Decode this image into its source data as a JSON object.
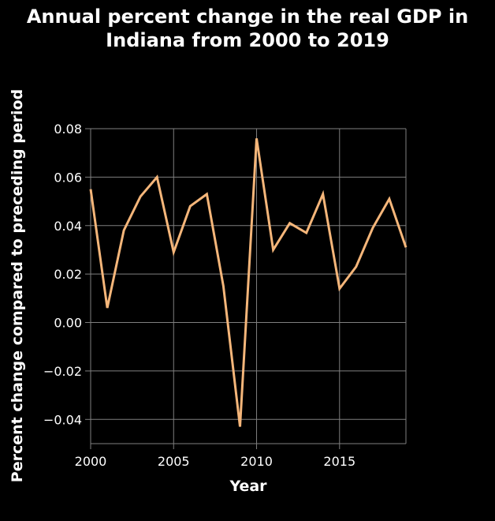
{
  "chart_data": {
    "type": "line",
    "title_line1": "Annual percent change in the real GDP in",
    "title_line2": "Indiana from 2000 to 2019",
    "xlabel": "Year",
    "ylabel": "Percent change compared to preceding period",
    "xlim": [
      2000,
      2019
    ],
    "ylim": [
      -0.05,
      0.08
    ],
    "x_ticks": [
      2000,
      2005,
      2010,
      2015
    ],
    "y_ticks": [
      -0.04,
      -0.02,
      0.0,
      0.02,
      0.04,
      0.06,
      0.08
    ],
    "y_tick_labels": [
      "−0.04",
      "−0.02",
      "0.00",
      "0.02",
      "0.04",
      "0.06",
      "0.08"
    ],
    "grid": true,
    "colors": {
      "background": "#000000",
      "line": "#f5b67a",
      "grid": "#7f7f7f",
      "text": "#ffffff"
    },
    "series": [
      {
        "x": [
          2000,
          2001,
          2002,
          2003,
          2004,
          2005,
          2006,
          2007,
          2008,
          2009,
          2010,
          2011,
          2012,
          2013,
          2014,
          2015,
          2016,
          2017,
          2018,
          2019
        ],
        "values": [
          0.055,
          0.006,
          0.038,
          0.052,
          0.06,
          0.029,
          0.048,
          0.053,
          0.015,
          -0.043,
          0.076,
          0.03,
          0.041,
          0.037,
          0.053,
          0.014,
          0.023,
          0.039,
          0.051,
          0.031
        ]
      }
    ]
  }
}
